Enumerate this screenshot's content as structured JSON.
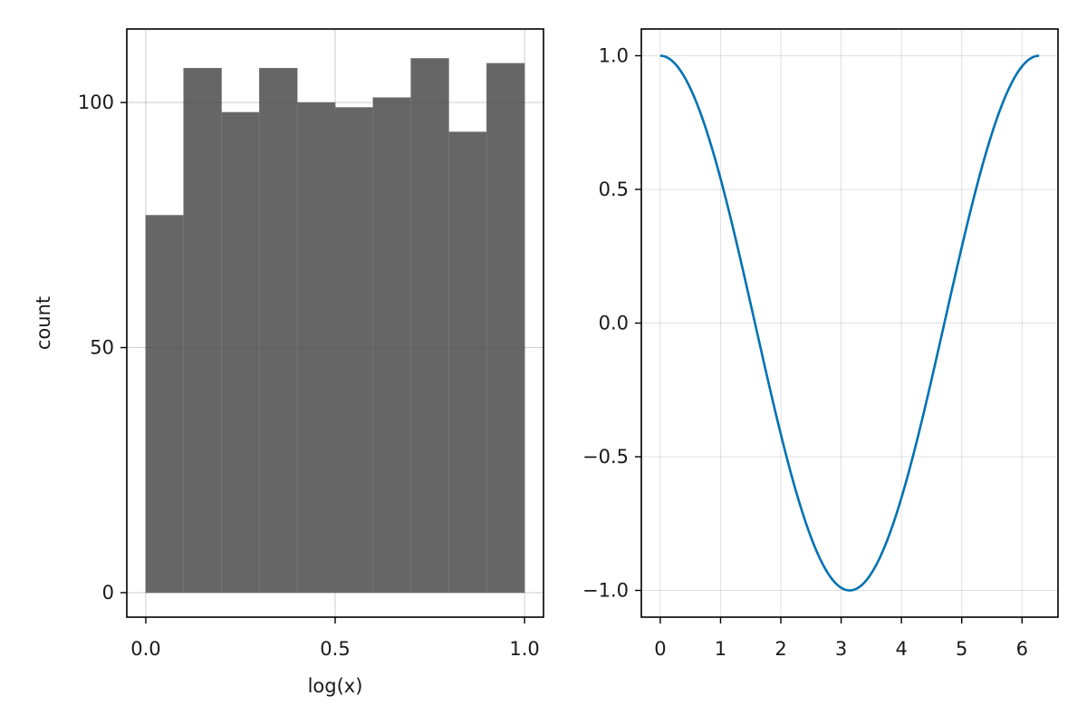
{
  "chart_data": [
    {
      "type": "bar",
      "subtype": "histogram",
      "title": "",
      "xlabel": "log(x)",
      "ylabel": "count",
      "bin_edges": [
        0.0,
        0.1,
        0.2,
        0.3,
        0.4,
        0.5,
        0.6,
        0.7,
        0.8,
        0.9,
        1.0
      ],
      "values": [
        77,
        107,
        98,
        107,
        100,
        99,
        101,
        109,
        94,
        108
      ],
      "xlim": [
        -0.05,
        1.05
      ],
      "ylim": [
        -5,
        115
      ],
      "xticks": [
        0.0,
        0.5,
        1.0
      ],
      "xtick_labels": [
        "0.0",
        "0.5",
        "1.0"
      ],
      "yticks": [
        0,
        50,
        100
      ],
      "ytick_labels": [
        "0",
        "50",
        "100"
      ],
      "grid": true,
      "bar_color": "#666666",
      "bar_edge_color": "#7a7a7a"
    },
    {
      "type": "line",
      "title": "",
      "xlabel": "",
      "ylabel": "",
      "function": "cos(x)",
      "x": [
        0,
        0.3927,
        0.7854,
        1.1781,
        1.5708,
        1.9635,
        2.3562,
        2.7489,
        3.1416,
        3.5343,
        3.927,
        4.3197,
        4.7124,
        5.1051,
        5.4978,
        5.8905,
        6.2832
      ],
      "y": [
        1.0,
        0.9239,
        0.7071,
        0.3827,
        0.0,
        -0.3827,
        -0.7071,
        -0.9239,
        -1.0,
        -0.9239,
        -0.7071,
        -0.3827,
        0.0,
        0.3827,
        0.7071,
        0.9239,
        1.0
      ],
      "xlim": [
        -0.314,
        6.597
      ],
      "ylim": [
        -1.1,
        1.1
      ],
      "xticks": [
        0,
        1,
        2,
        3,
        4,
        5,
        6
      ],
      "xtick_labels": [
        "0",
        "1",
        "2",
        "3",
        "4",
        "5",
        "6"
      ],
      "yticks": [
        -1.0,
        -0.5,
        0.0,
        0.5,
        1.0
      ],
      "ytick_labels": [
        "−1.0",
        "−0.5",
        "0.0",
        "0.5",
        "1.0"
      ],
      "grid": true,
      "line_color": "#0072b2"
    }
  ]
}
